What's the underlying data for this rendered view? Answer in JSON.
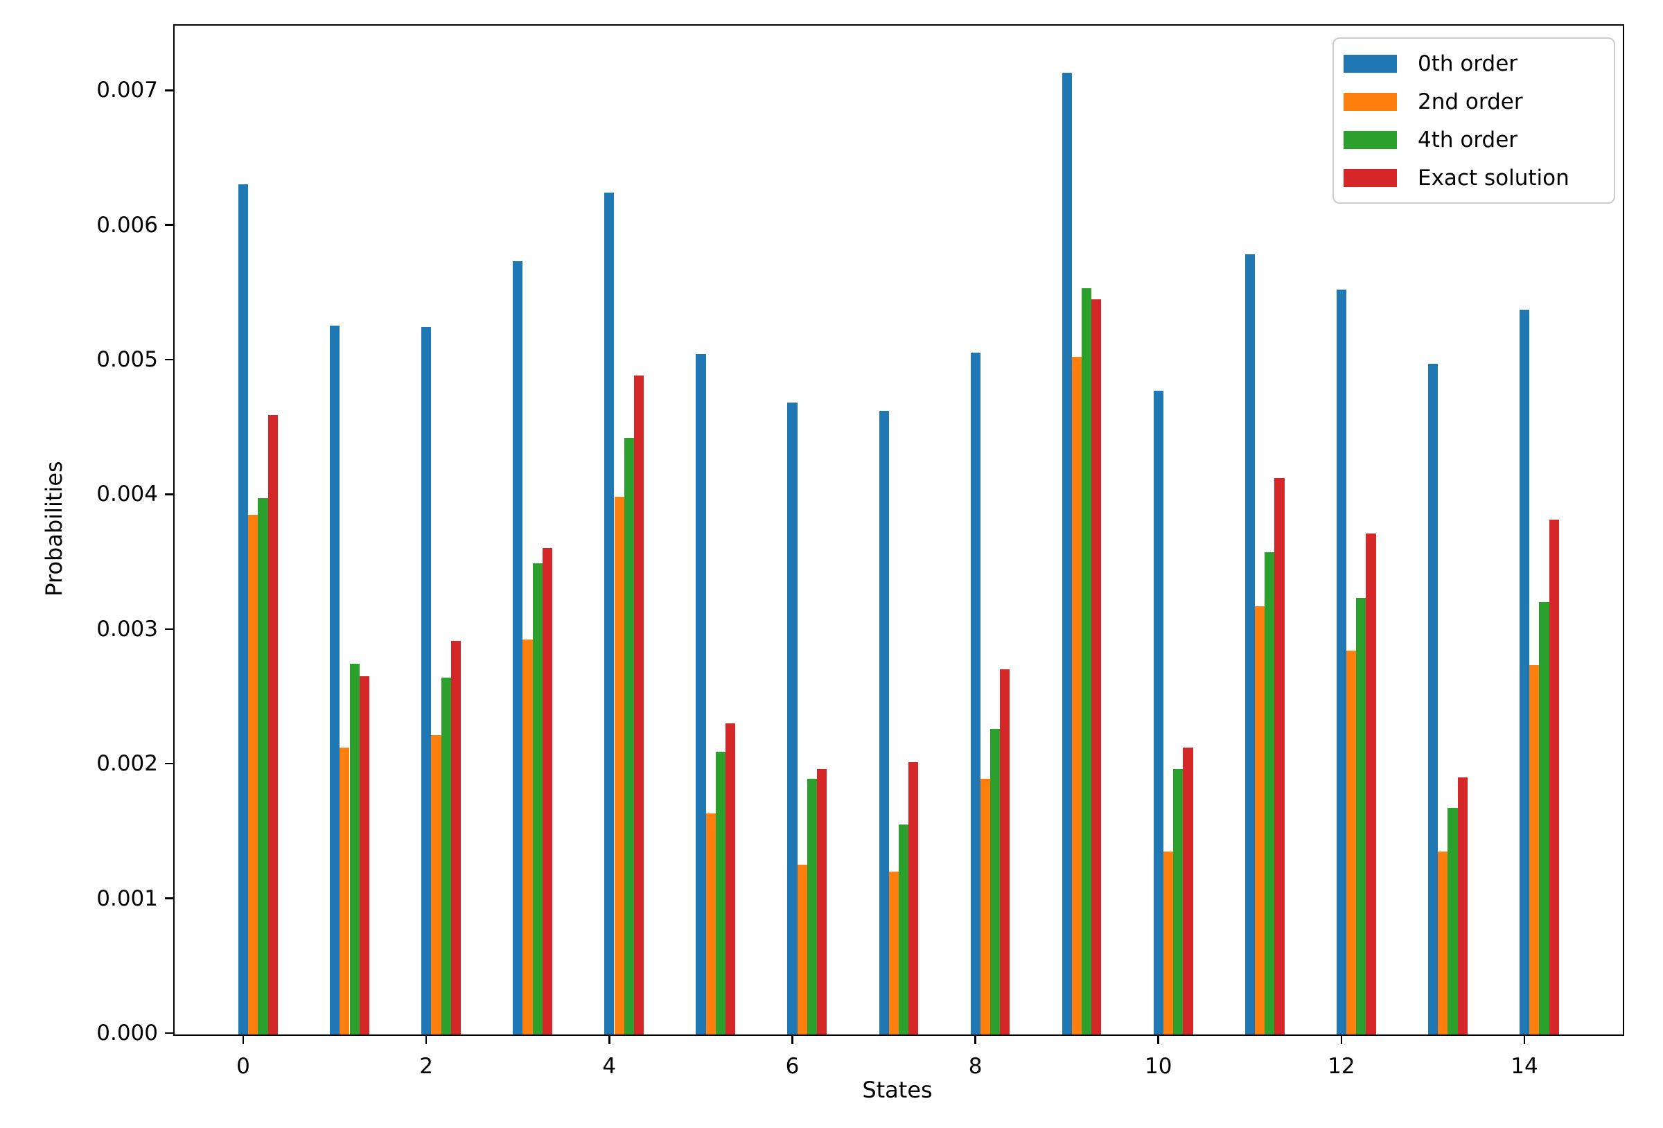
{
  "chart_data": {
    "type": "bar",
    "title": "",
    "xlabel": "States",
    "ylabel": "Probabilities",
    "grid": false,
    "legend_position": "upper right",
    "categories": [
      0,
      1,
      2,
      3,
      4,
      5,
      6,
      7,
      8,
      9,
      10,
      11,
      12,
      13,
      14
    ],
    "series": [
      {
        "name": "0th order",
        "color": "#1f77b4",
        "values": [
          0.00631,
          0.00526,
          0.00525,
          0.00574,
          0.00625,
          0.00505,
          0.00469,
          0.00463,
          0.00506,
          0.00714,
          0.00478,
          0.00579,
          0.00553,
          0.00498,
          0.00538
        ]
      },
      {
        "name": "2nd order",
        "color": "#ff7f0e",
        "values": [
          0.00386,
          0.00213,
          0.00222,
          0.00293,
          0.00399,
          0.00164,
          0.00126,
          0.00121,
          0.0019,
          0.00503,
          0.00136,
          0.00318,
          0.00285,
          0.00136,
          0.00274
        ]
      },
      {
        "name": "4th order",
        "color": "#2ca02c",
        "values": [
          0.00398,
          0.00275,
          0.00265,
          0.0035,
          0.00443,
          0.0021,
          0.0019,
          0.00156,
          0.00227,
          0.00554,
          0.00197,
          0.00358,
          0.00324,
          0.00168,
          0.00321
        ]
      },
      {
        "name": "Exact solution",
        "color": "#d62728",
        "values": [
          0.0046,
          0.00266,
          0.00292,
          0.00361,
          0.00489,
          0.00231,
          0.00197,
          0.00202,
          0.00271,
          0.00546,
          0.00213,
          0.00413,
          0.00372,
          0.00191,
          0.00382
        ]
      }
    ],
    "xticks": [
      0,
      2,
      4,
      6,
      8,
      10,
      12,
      14
    ],
    "xtick_labels": [
      "0",
      "2",
      "4",
      "6",
      "8",
      "10",
      "12",
      "14"
    ],
    "ytick_values": [
      0.0,
      0.001,
      0.002,
      0.003,
      0.004,
      0.005,
      0.006,
      0.007
    ],
    "ytick_labels": [
      "0.000",
      "0.001",
      "0.002",
      "0.003",
      "0.004",
      "0.005",
      "0.006",
      "0.007"
    ],
    "xlim": [
      -0.765,
      15.06
    ],
    "ylim": [
      0,
      0.00749
    ]
  }
}
